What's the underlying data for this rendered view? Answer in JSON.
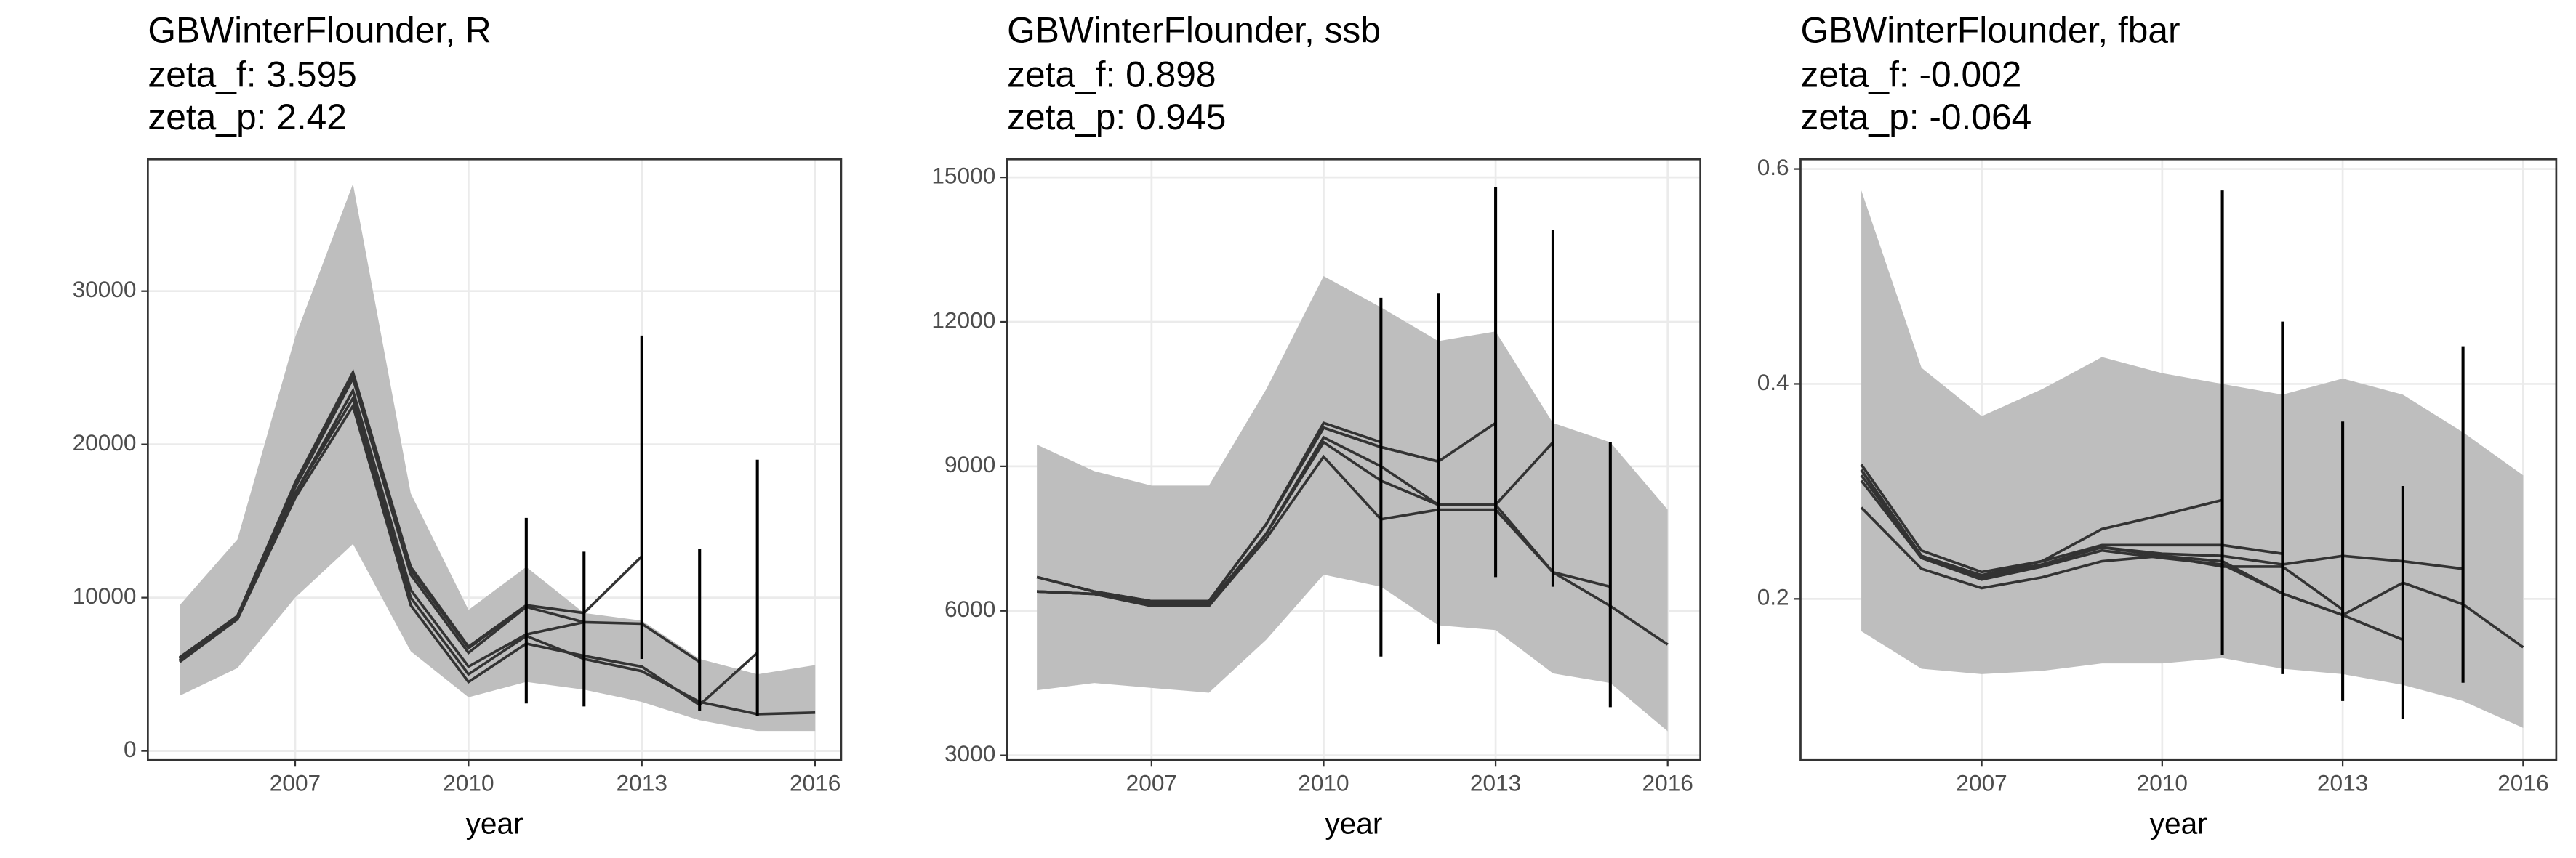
{
  "chart_data": [
    {
      "type": "line",
      "title": "GBWinterFlounder, R",
      "annotations": [
        "zeta_f: 3.595",
        "zeta_p: 2.42"
      ],
      "xlabel": "year",
      "x": [
        2005,
        2006,
        2007,
        2008,
        2009,
        2010,
        2011,
        2012,
        2013,
        2014,
        2015,
        2016
      ],
      "xlim": [
        2004.45,
        2016.45
      ],
      "xticks": [
        2007,
        2010,
        2013,
        2016
      ],
      "ylim": [
        -600,
        38600
      ],
      "yticks": [
        0,
        10000,
        20000,
        30000
      ],
      "grid": true,
      "band": {
        "color": "#bebebe",
        "lower": [
          3600,
          5400,
          10000,
          13500,
          6500,
          3500,
          4500,
          4000,
          3200,
          2000,
          1300,
          1300
        ],
        "upper": [
          9500,
          13800,
          27000,
          37000,
          16800,
          9200,
          12000,
          9000,
          8500,
          6000,
          5000,
          5600
        ]
      },
      "series": [
        {
          "color": "#333333",
          "values": [
            5900,
            8600,
            16800,
            23000,
            10000,
            5000,
            7500,
            6000,
            5200,
            3200,
            2400,
            2500
          ]
        },
        {
          "color": "#333333",
          "values": [
            6100,
            8800,
            17500,
            24700,
            12000,
            6800,
            9500,
            null,
            null,
            null,
            null,
            null
          ]
        },
        {
          "color": "#333333",
          "values": [
            6000,
            8700,
            17200,
            24300,
            11500,
            6400,
            9400,
            8400,
            null,
            null,
            null,
            null
          ]
        },
        {
          "color": "#333333",
          "values": [
            6000,
            8800,
            17300,
            24500,
            11800,
            6700,
            9500,
            9000,
            12700,
            null,
            null,
            null
          ]
        },
        {
          "color": "#333333",
          "values": [
            5800,
            8600,
            16800,
            23500,
            10500,
            5500,
            7600,
            8400,
            8300,
            5800,
            null,
            null
          ]
        },
        {
          "color": "#333333",
          "values": [
            5900,
            8600,
            16500,
            22500,
            9500,
            4500,
            7000,
            6200,
            5500,
            3000,
            6400,
            null
          ]
        }
      ],
      "error_bars": {
        "color": "#000000",
        "x": [
          2011,
          2012,
          2013,
          2014,
          2015
        ],
        "lower": [
          3100,
          2900,
          6000,
          2600,
          2300
        ],
        "upper": [
          15200,
          13000,
          27100,
          13200,
          19000
        ]
      }
    },
    {
      "type": "line",
      "title": "GBWinterFlounder, ssb",
      "annotations": [
        "zeta_f: 0.898",
        "zeta_p: 0.945"
      ],
      "xlabel": "year",
      "x": [
        2005,
        2006,
        2007,
        2008,
        2009,
        2010,
        2011,
        2012,
        2013,
        2014,
        2015,
        2016
      ],
      "xlim": [
        2004.48,
        2016.57
      ],
      "xticks": [
        2007,
        2010,
        2013,
        2016
      ],
      "ylim": [
        2900,
        15375
      ],
      "yticks": [
        3000,
        6000,
        9000,
        12000,
        15000
      ],
      "grid": true,
      "band": {
        "color": "#bebebe",
        "lower": [
          4350,
          4500,
          4400,
          4300,
          5400,
          6750,
          6500,
          5700,
          5600,
          4700,
          4500,
          3500
        ],
        "upper": [
          9450,
          8900,
          8600,
          8600,
          10600,
          12950,
          12300,
          11600,
          11800,
          9900,
          9500,
          8100
        ]
      },
      "series": [
        {
          "color": "#333333",
          "values": [
            6400,
            6350,
            6100,
            6100,
            7500,
            9200,
            7900,
            8100,
            8100,
            6800,
            6100,
            5300
          ]
        },
        {
          "color": "#333333",
          "values": [
            6700,
            6400,
            6200,
            6200,
            7800,
            9900,
            9500,
            null,
            null,
            null,
            null,
            null
          ]
        },
        {
          "color": "#333333",
          "values": [
            6700,
            6400,
            6200,
            6200,
            7800,
            9800,
            9400,
            9100,
            null,
            null,
            null,
            null
          ]
        },
        {
          "color": "#333333",
          "values": [
            6700,
            6400,
            6200,
            6200,
            7800,
            9800,
            9400,
            9100,
            9900,
            null,
            null,
            null
          ]
        },
        {
          "color": "#333333",
          "values": [
            6400,
            6350,
            6150,
            6150,
            7600,
            9600,
            9000,
            8200,
            8200,
            9500,
            null,
            null
          ]
        },
        {
          "color": "#333333",
          "values": [
            6400,
            6350,
            6100,
            6100,
            7600,
            9500,
            8700,
            8200,
            8200,
            6800,
            6500,
            null
          ]
        }
      ],
      "error_bars": {
        "color": "#000000",
        "x": [
          2011,
          2012,
          2013,
          2014,
          2015
        ],
        "lower": [
          5050,
          5300,
          6700,
          6500,
          4000
        ],
        "upper": [
          12500,
          12600,
          14800,
          13900,
          9500
        ]
      }
    },
    {
      "type": "line",
      "title": "GBWinterFlounder, fbar",
      "annotations": [
        "zeta_f: -0.002",
        "zeta_p: -0.064"
      ],
      "xlabel": "year",
      "x": [
        2005,
        2006,
        2007,
        2008,
        2009,
        2010,
        2011,
        2012,
        2013,
        2014,
        2015,
        2016
      ],
      "xlim": [
        2003.99,
        2016.55
      ],
      "xticks": [
        2007,
        2010,
        2013,
        2016
      ],
      "ylim": [
        0.05,
        0.609
      ],
      "yticks": [
        0.2,
        0.4,
        0.6
      ],
      "grid": true,
      "band": {
        "color": "#bebebe",
        "lower": [
          0.17,
          0.135,
          0.13,
          0.133,
          0.14,
          0.14,
          0.145,
          0.135,
          0.13,
          0.12,
          0.105,
          0.08
        ],
        "upper": [
          0.58,
          0.415,
          0.37,
          0.395,
          0.425,
          0.41,
          0.4,
          0.39,
          0.405,
          0.39,
          0.355,
          0.315
        ]
      },
      "series": [
        {
          "color": "#333333",
          "values": [
            0.285,
            0.228,
            0.21,
            0.22,
            0.235,
            0.24,
            0.235,
            0.205,
            0.185,
            0.215,
            0.195,
            0.155
          ]
        },
        {
          "color": "#333333",
          "values": [
            0.32,
            0.24,
            0.222,
            0.235,
            0.265,
            0.278,
            0.292,
            null,
            null,
            null,
            null,
            null
          ]
        },
        {
          "color": "#333333",
          "values": [
            0.325,
            0.245,
            0.225,
            0.235,
            0.25,
            0.25,
            0.25,
            0.242,
            null,
            null,
            null,
            null
          ]
        },
        {
          "color": "#333333",
          "values": [
            0.315,
            0.24,
            0.22,
            0.232,
            0.248,
            0.24,
            0.23,
            0.23,
            0.19,
            null,
            null,
            null
          ]
        },
        {
          "color": "#333333",
          "values": [
            0.31,
            0.238,
            0.218,
            0.23,
            0.245,
            0.238,
            0.232,
            0.205,
            0.185,
            0.162,
            null,
            null
          ]
        },
        {
          "color": "#333333",
          "values": [
            0.32,
            0.24,
            0.222,
            0.232,
            0.248,
            0.242,
            0.24,
            0.232,
            0.24,
            0.235,
            0.228,
            null
          ]
        }
      ],
      "error_bars": {
        "color": "#000000",
        "x": [
          2011,
          2012,
          2013,
          2014,
          2015
        ],
        "lower": [
          0.148,
          0.13,
          0.105,
          0.088,
          0.122
        ],
        "upper": [
          0.58,
          0.458,
          0.365,
          0.305,
          0.435
        ]
      }
    }
  ]
}
